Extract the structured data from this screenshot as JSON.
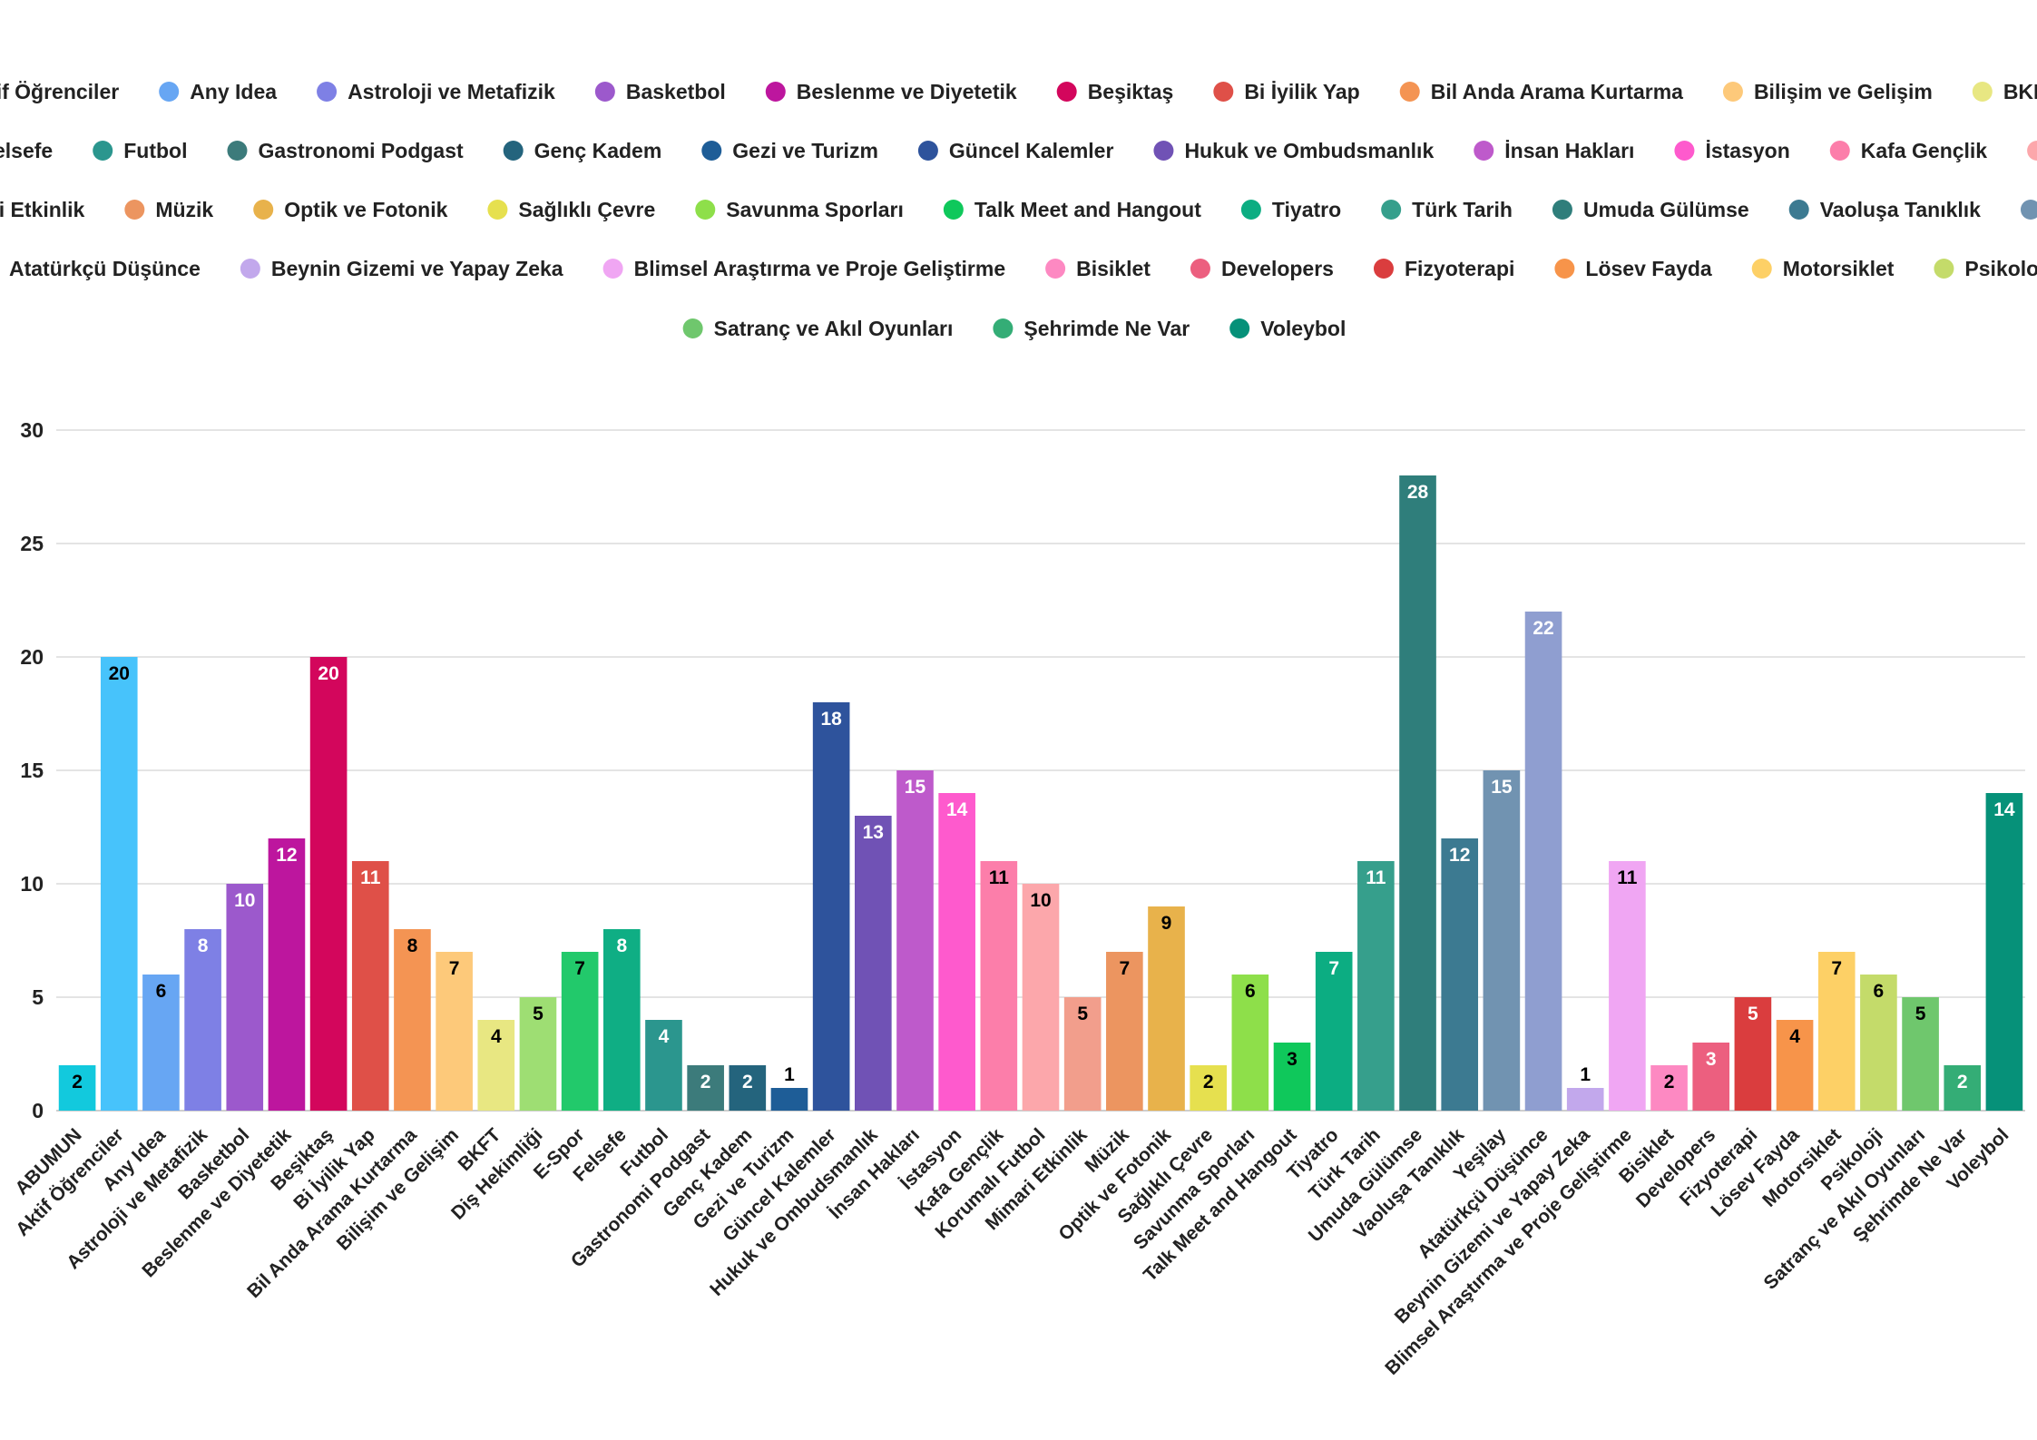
{
  "chart_data": {
    "type": "bar",
    "title": "",
    "xlabel": "",
    "ylabel": "",
    "ylim": [
      0,
      30
    ],
    "yticks": [
      0,
      5,
      10,
      15,
      20,
      25,
      30
    ],
    "grid": true,
    "legend_position": "top",
    "categories": [
      "ABUMUN",
      "Aktif Öğrenciler",
      "Any Idea",
      "Astroloji ve Metafizik",
      "Basketbol",
      "Beslenme ve Diyetetik",
      "Beşiktaş",
      "Bi İyilik Yap",
      "Bil Anda Arama Kurtarma",
      "Bilişim ve Gelişim",
      "BKFT",
      "Diş Hekimliği",
      "E-Spor",
      "Felsefe",
      "Futbol",
      "Gastronomi Podgast",
      "Genç Kadem",
      "Gezi ve Turizm",
      "Güncel Kalemler",
      "Hukuk ve Ombudsmanlık",
      "İnsan Hakları",
      "İstasyon",
      "Kafa Gençlik",
      "Korumalı Futbol",
      "Mimari Etkinlik",
      "Müzik",
      "Optik ve Fotonik",
      "Sağlıklı Çevre",
      "Savunma Sporları",
      "Talk Meet and Hangout",
      "Tiyatro",
      "Türk Tarih",
      "Umuda Gülümse",
      "Vaoluşa Tanıklık",
      "Yeşilay",
      "Atatürkçü Düşünce",
      "Beynin Gizemi ve Yapay Zeka",
      "Blimsel Araştırma ve Proje Geliştirme",
      "Bisiklet",
      "Developers",
      "Fizyoterapi",
      "Lösev Fayda",
      "Motorsiklet",
      "Psikoloji",
      "Satranç ve Akıl Oyunları",
      "Şehrimde Ne Var",
      "Voleybol"
    ],
    "values": [
      2,
      20,
      6,
      8,
      10,
      12,
      20,
      11,
      8,
      7,
      4,
      5,
      7,
      8,
      4,
      2,
      2,
      1,
      18,
      13,
      15,
      14,
      11,
      10,
      5,
      7,
      9,
      2,
      6,
      3,
      7,
      11,
      28,
      12,
      15,
      22,
      1,
      11,
      2,
      3,
      5,
      4,
      7,
      6,
      5,
      2,
      14
    ],
    "colors": [
      "#12c9dd",
      "#47c3fb",
      "#67a6f3",
      "#7e80e5",
      "#9c59cc",
      "#bd169e",
      "#d3065c",
      "#df5048",
      "#f49453",
      "#fdc97a",
      "#e8e782",
      "#9ede73",
      "#22c96b",
      "#0fae84",
      "#2b968e",
      "#3c7b7b",
      "#24647d",
      "#1e5d97",
      "#2e539c",
      "#7052b5",
      "#be5acb",
      "#fe5acd",
      "#fc7eaa",
      "#fca7ab",
      "#f29e8c",
      "#ec9560",
      "#e8b24b",
      "#e6e04f",
      "#8edf4a",
      "#0fc85b",
      "#0cad82",
      "#369f8c",
      "#2f7e7b",
      "#3c7a91",
      "#7193b1",
      "#8f9ed0",
      "#c2a8ec",
      "#f0a6f3",
      "#fd89c2",
      "#ec5f7f",
      "#da3d3e",
      "#f7944a",
      "#fdd066",
      "#c4db6a",
      "#6fc76d",
      "#34ad76",
      "#069179"
    ],
    "label_colors": [
      "#000000",
      "#000000",
      "#000000",
      "#ffffff",
      "#ffffff",
      "#ffffff",
      "#ffffff",
      "#ffffff",
      "#000000",
      "#000000",
      "#000000",
      "#000000",
      "#000000",
      "#ffffff",
      "#ffffff",
      "#ffffff",
      "#ffffff",
      "#000000",
      "#ffffff",
      "#ffffff",
      "#ffffff",
      "#ffffff",
      "#000000",
      "#000000",
      "#000000",
      "#000000",
      "#000000",
      "#000000",
      "#000000",
      "#000000",
      "#ffffff",
      "#ffffff",
      "#ffffff",
      "#ffffff",
      "#ffffff",
      "#ffffff",
      "#000000",
      "#000000",
      "#000000",
      "#ffffff",
      "#ffffff",
      "#000000",
      "#000000",
      "#000000",
      "#000000",
      "#ffffff",
      "#ffffff"
    ]
  }
}
